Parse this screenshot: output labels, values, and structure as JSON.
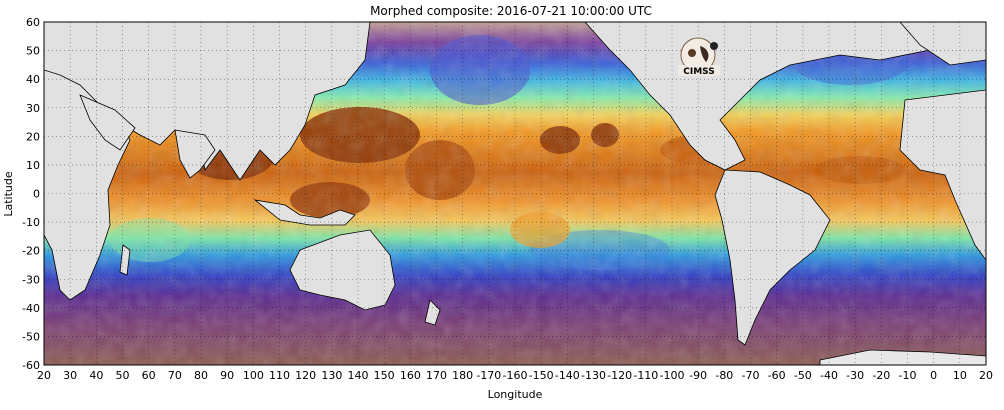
{
  "title": "Morphed composite: 2016-07-21 10:00:00 UTC",
  "x_axis": {
    "label": "Longitude",
    "ticks": [
      "20",
      "30",
      "40",
      "50",
      "60",
      "70",
      "80",
      "90",
      "100",
      "110",
      "120",
      "130",
      "140",
      "150",
      "160",
      "170",
      "180",
      "-170",
      "-160",
      "-150",
      "-140",
      "-130",
      "-120",
      "-110",
      "-100",
      "-90",
      "-80",
      "-70",
      "-60",
      "-50",
      "-40",
      "-30",
      "-20",
      "-10",
      "0",
      "10",
      "20"
    ]
  },
  "y_axis": {
    "label": "Latitude",
    "ticks": [
      "60",
      "50",
      "40",
      "30",
      "20",
      "10",
      "0",
      "-10",
      "-20",
      "-30",
      "-40",
      "-50",
      "-60"
    ]
  },
  "logo": {
    "text": "CIMSS",
    "icon": "cimss-logo-icon"
  },
  "colors": {
    "land": "#e1e1e1",
    "coastline": "#000000",
    "deep_moist": "#8a2f05",
    "moist": "#c8600e",
    "moderate_moist": "#f39a24",
    "mid": "#f7d468",
    "low_mid": "#7ee8a8",
    "low": "#2f9ae0",
    "dry": "#3b44c9",
    "very_dry": "#5d2c91",
    "driest": "#8c5b52"
  },
  "chart_data": {
    "type": "heatmap",
    "title": "Morphed composite: 2016-07-21 10:00:00 UTC",
    "xlabel": "Longitude",
    "ylabel": "Latitude",
    "xlim": [
      20,
      380
    ],
    "ylim": [
      -60,
      60
    ],
    "grid": true
  }
}
